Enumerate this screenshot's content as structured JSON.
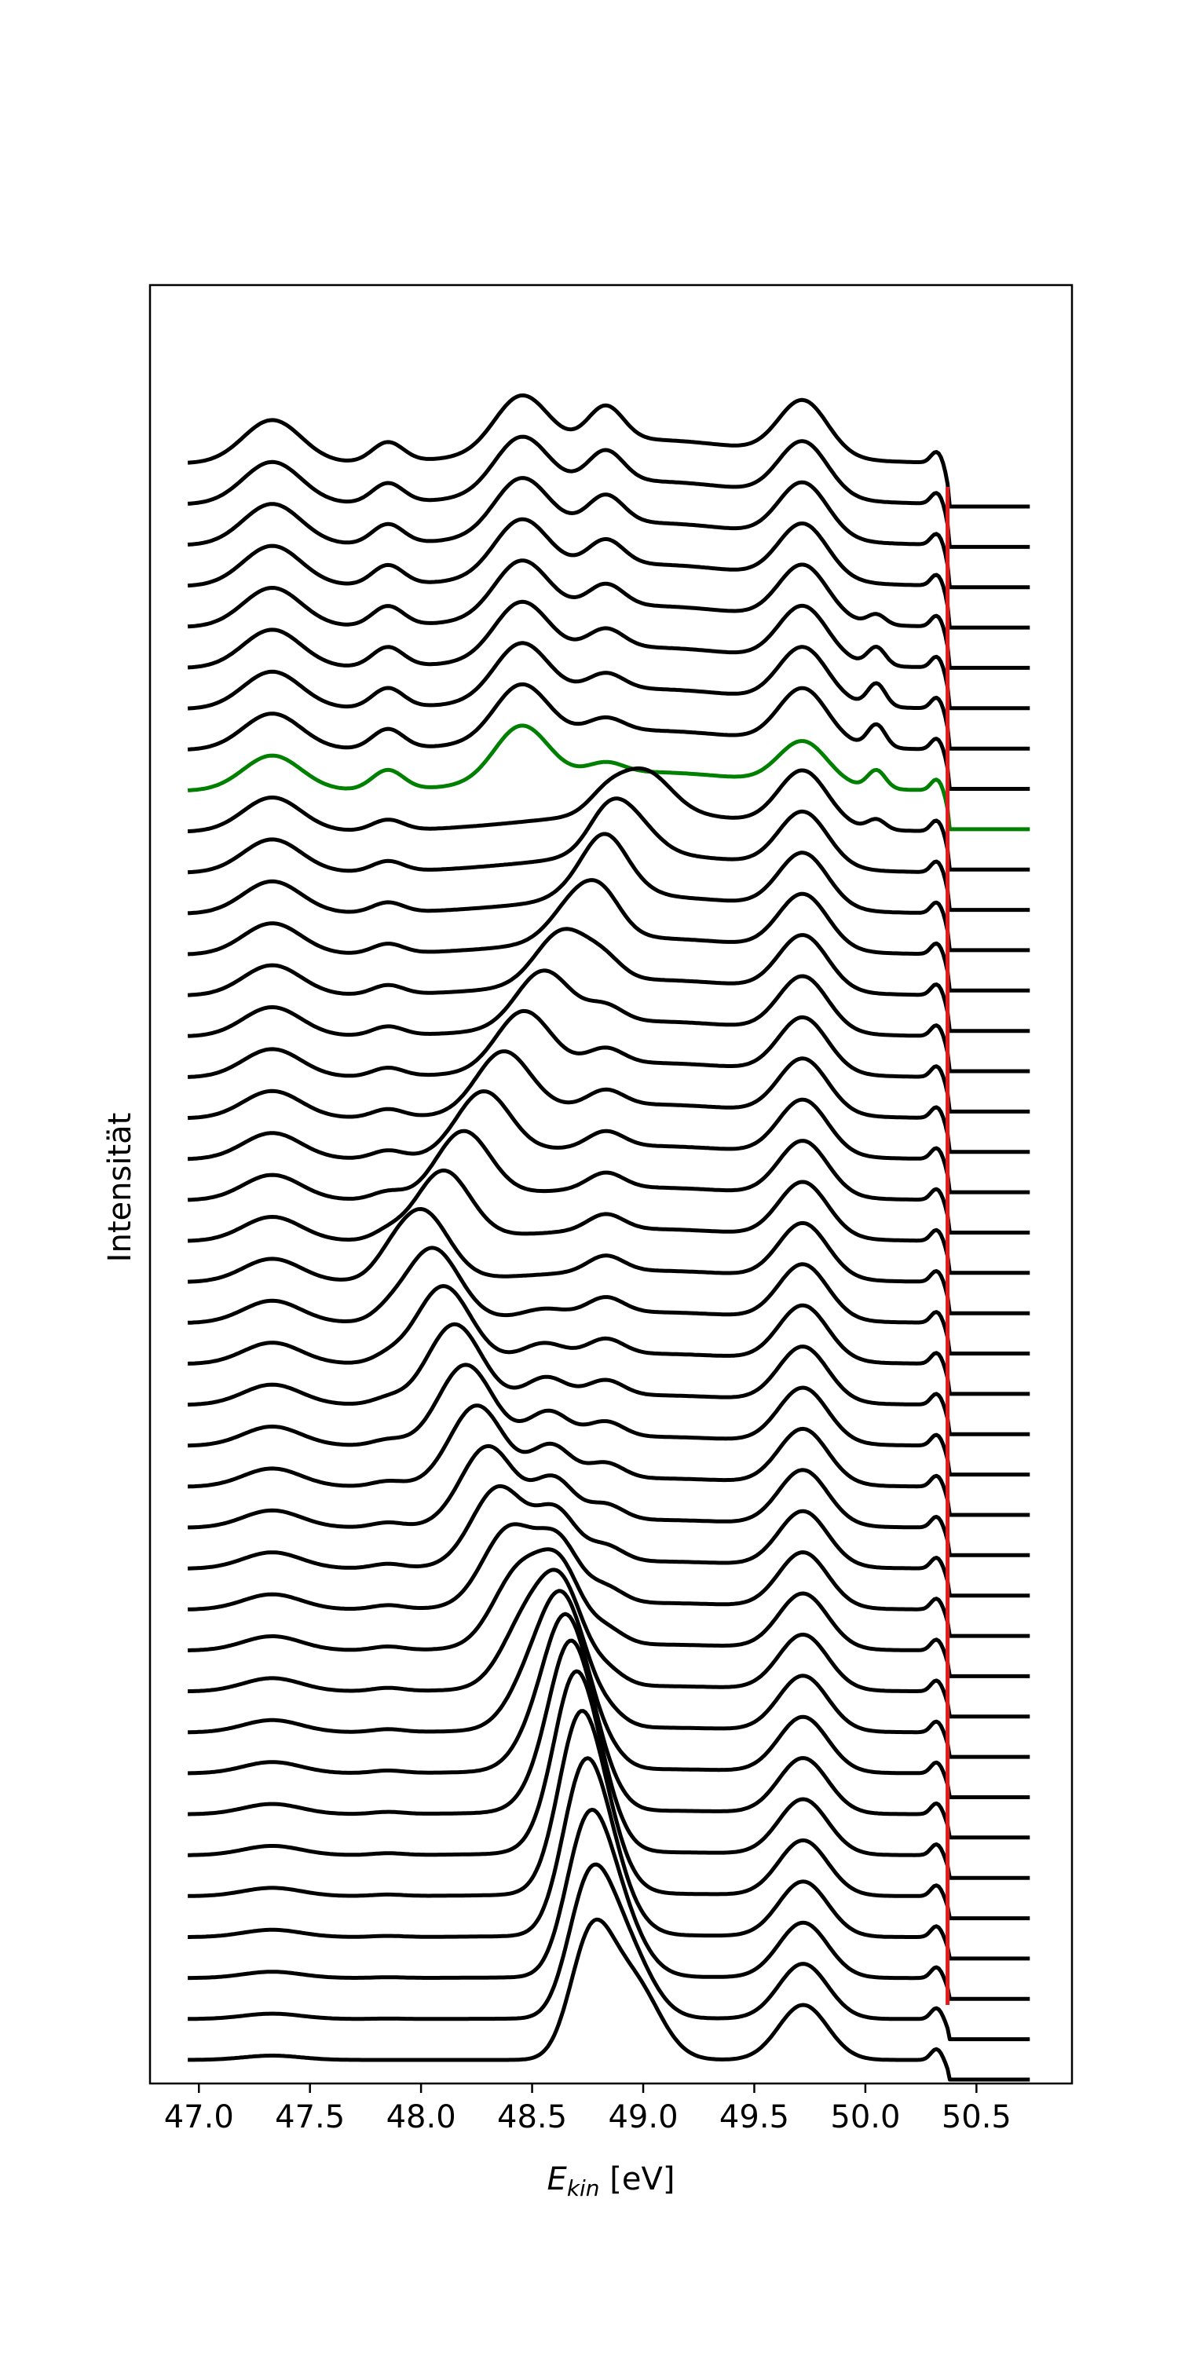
{
  "chart_data": {
    "type": "line",
    "title": "",
    "xlabel_main": "E",
    "xlabel_sub": "kin",
    "xlabel_unit": " [eV]",
    "ylabel": "Intensität",
    "xlim": [
      46.78,
      50.93
    ],
    "x_ticks": [
      "47.0",
      "47.5",
      "48.0",
      "48.5",
      "49.0",
      "49.5",
      "50.0",
      "50.5"
    ],
    "x_tick_values": [
      47.0,
      47.5,
      48.0,
      48.5,
      49.0,
      49.5,
      50.0,
      50.5
    ],
    "x_start": 46.95,
    "x_end": 50.74,
    "fermi_edge": 50.37,
    "n_traces": 40,
    "highlight_trace": 8,
    "trace_color": "#000000",
    "highlight_color": "#008000",
    "edge_color": "#e31a1c",
    "grid": false,
    "y_ticks": false,
    "legend": "none"
  }
}
